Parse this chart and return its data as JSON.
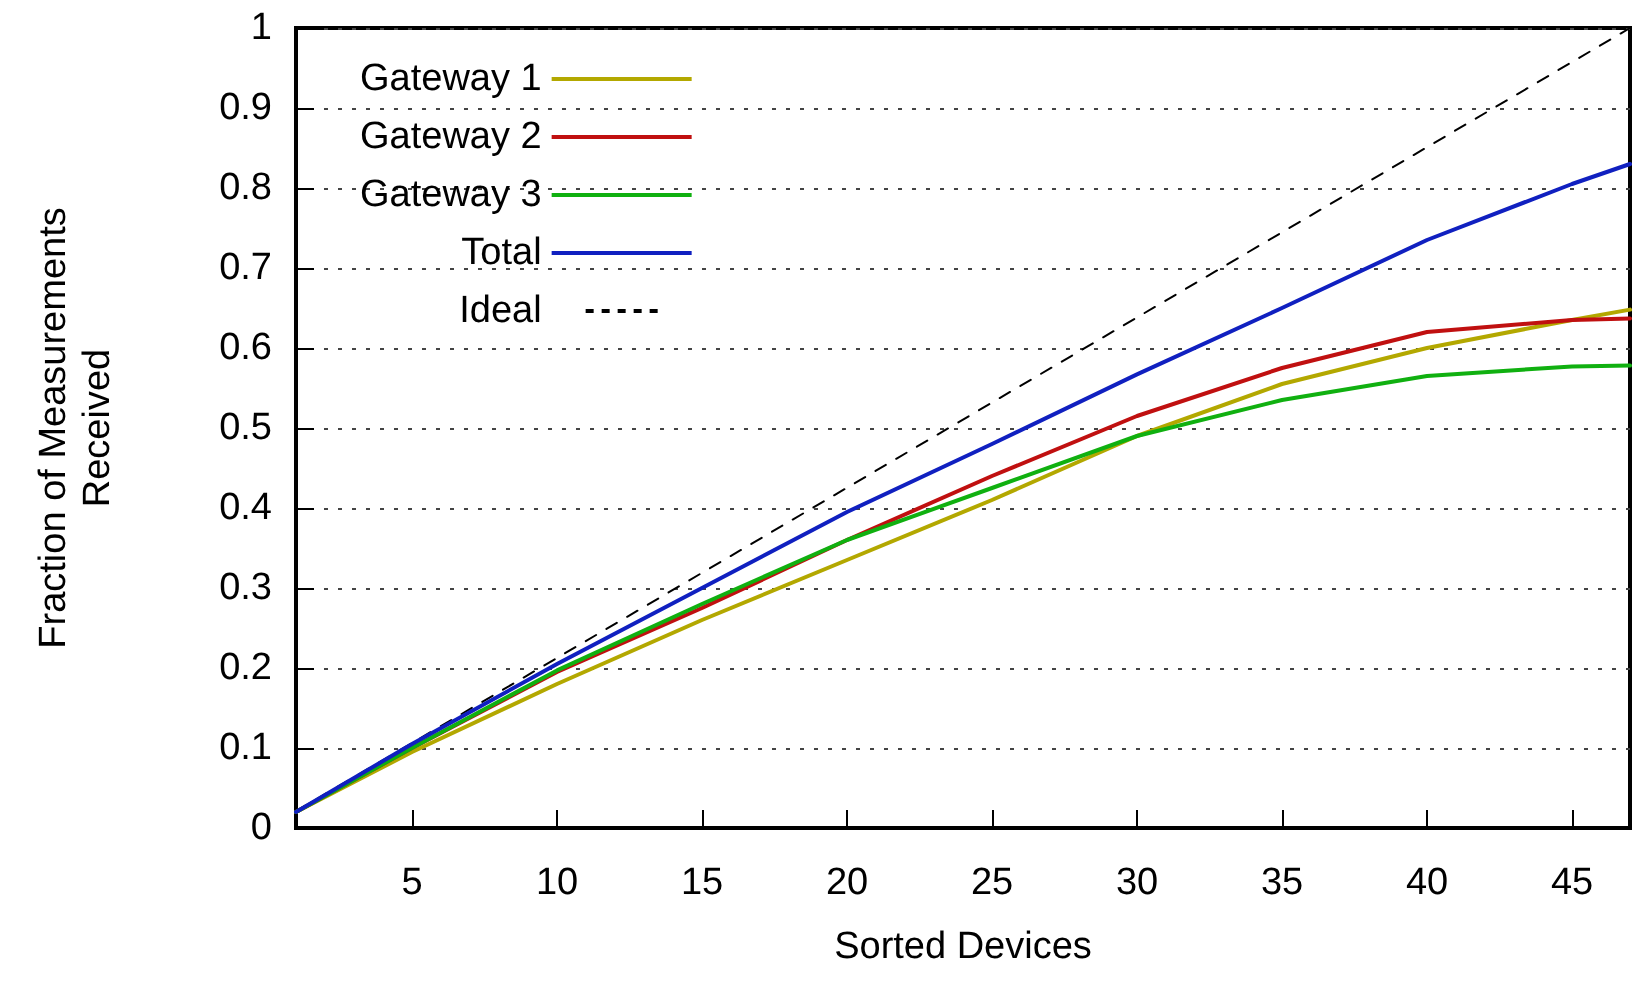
{
  "chart_data": {
    "type": "line",
    "xlabel": "Sorted Devices",
    "ylabel": "Fraction of Measurements\nReceived",
    "xlim": [
      1,
      47
    ],
    "xticks": [
      5,
      10,
      15,
      20,
      25,
      30,
      35,
      40,
      45
    ],
    "ylim": [
      0,
      1
    ],
    "yticks": [
      0,
      0.1,
      0.2,
      0.3,
      0.4,
      0.5,
      0.6,
      0.7,
      0.8,
      0.9,
      1
    ],
    "grid": "y",
    "legend": "top left",
    "marker": "none",
    "x": [
      1,
      5,
      10,
      15,
      20,
      25,
      30,
      35,
      40,
      45,
      47
    ],
    "series": [
      {
        "name": "Gateway 1",
        "color": "#b3a800",
        "values": [
          0.02,
          0.095,
          0.18,
          0.26,
          0.335,
          0.41,
          0.49,
          0.555,
          0.6,
          0.635,
          0.648
        ]
      },
      {
        "name": "Gateway 2",
        "color": "#c01010",
        "values": [
          0.02,
          0.1,
          0.195,
          0.275,
          0.36,
          0.44,
          0.515,
          0.575,
          0.62,
          0.635,
          0.637
        ]
      },
      {
        "name": "Gateway 3",
        "color": "#10b010",
        "values": [
          0.02,
          0.1,
          0.197,
          0.28,
          0.36,
          0.425,
          0.49,
          0.535,
          0.565,
          0.577,
          0.578
        ]
      },
      {
        "name": "Total",
        "color": "#1020c0",
        "values": [
          0.02,
          0.105,
          0.205,
          0.3,
          0.395,
          0.48,
          0.567,
          0.65,
          0.735,
          0.805,
          0.83
        ]
      },
      {
        "name": "Ideal",
        "color": "#000000",
        "line_style": "dashed",
        "x": [
          1,
          47
        ],
        "values": [
          0.021,
          1
        ]
      }
    ]
  }
}
